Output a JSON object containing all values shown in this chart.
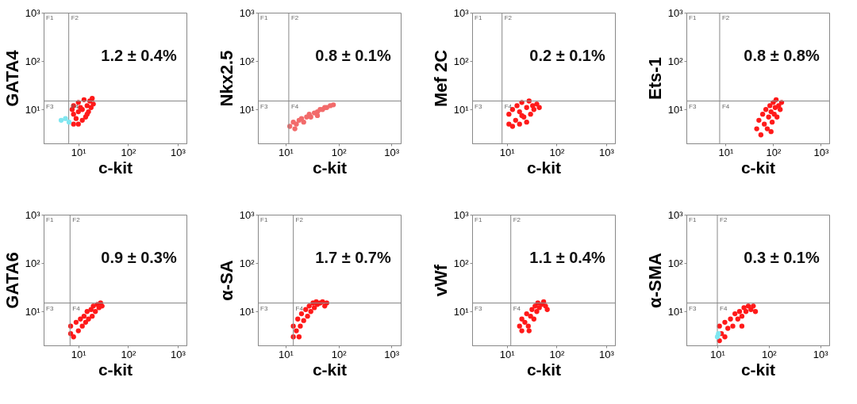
{
  "chart_data": [
    {
      "type": "scatter",
      "ylabel": "GATA4",
      "xlabel": "c-kit",
      "log": "xy",
      "marker": "circle",
      "xlim": [
        2,
        1500
      ],
      "ylim": [
        2,
        1000
      ],
      "xticks": [
        {
          "value": 10,
          "label": "10¹"
        },
        {
          "value": 100,
          "label": "10²"
        },
        {
          "value": 1000,
          "label": "10³"
        }
      ],
      "yticks": [
        {
          "value": 10,
          "label": "10¹"
        },
        {
          "value": 100,
          "label": "10²"
        },
        {
          "value": 1000,
          "label": "10³"
        }
      ],
      "series": [
        {
          "color": "#ff1a1a",
          "x": [
            8,
            8,
            8,
            10,
            10,
            10,
            12,
            12,
            13,
            14,
            15,
            16,
            17,
            18,
            20,
            9,
            11,
            15,
            19,
            7.5
          ],
          "values": [
            5,
            8,
            12,
            5,
            9,
            14,
            6,
            10,
            16,
            7,
            12,
            9,
            15,
            11,
            13,
            6.5,
            11,
            8,
            17,
            10
          ]
        },
        {
          "color": "#7fe6f0",
          "x": [
            4.5,
            5.5,
            6.5
          ],
          "values": [
            6,
            6.5,
            5.5
          ]
        }
      ],
      "ref_lines": [
        {
          "axis": "x",
          "value": 6.4,
          "color": "#888888"
        },
        {
          "axis": "y",
          "value": 15,
          "color": "#888888"
        }
      ],
      "annotations": [
        "1.2 ± 0.4%",
        "F1",
        "F2",
        "F3",
        "F4"
      ]
    },
    {
      "type": "scatter",
      "ylabel": "Nkx2.5",
      "xlabel": "c-kit",
      "log": "xy",
      "marker": "circle",
      "xlim": [
        3,
        1500
      ],
      "ylim": [
        2,
        1000
      ],
      "xticks": [
        {
          "value": 10,
          "label": "10¹"
        },
        {
          "value": 100,
          "label": "10²"
        },
        {
          "value": 1000,
          "label": "10³"
        }
      ],
      "yticks": [
        {
          "value": 10,
          "label": "10¹"
        },
        {
          "value": 100,
          "label": "10²"
        },
        {
          "value": 1000,
          "label": "10³"
        }
      ],
      "series": [
        {
          "color": "#f26b6b",
          "x": [
            12,
            14,
            16,
            18,
            20,
            22,
            25,
            28,
            30,
            35,
            40,
            40,
            45,
            50,
            55,
            60,
            70,
            80,
            15
          ],
          "values": [
            4.5,
            5.5,
            5,
            6,
            6.5,
            5.5,
            7,
            8,
            7,
            8.5,
            9,
            7.5,
            10,
            10,
            11,
            11,
            12,
            12.5,
            4
          ]
        }
      ],
      "ref_lines": [
        {
          "axis": "x",
          "value": 11.5,
          "color": "#888888"
        },
        {
          "axis": "y",
          "value": 15,
          "color": "#888888"
        }
      ],
      "annotations": [
        "0.8 ± 0.1%",
        "F1",
        "F2",
        "F3",
        "F4"
      ]
    },
    {
      "type": "scatter",
      "ylabel": "Mef 2C",
      "xlabel": "c-kit",
      "log": "xy",
      "marker": "circle",
      "xlim": [
        2,
        1500
      ],
      "ylim": [
        2,
        1000
      ],
      "xticks": [
        {
          "value": 10,
          "label": "10¹"
        },
        {
          "value": 100,
          "label": "10²"
        },
        {
          "value": 1000,
          "label": "10³"
        }
      ],
      "yticks": [
        {
          "value": 10,
          "label": "10¹"
        },
        {
          "value": 100,
          "label": "10²"
        },
        {
          "value": 1000,
          "label": "10³"
        }
      ],
      "series": [
        {
          "color": "#ff1a1a",
          "x": [
            11,
            11,
            13,
            13,
            15,
            16,
            18,
            18,
            20,
            22,
            25,
            25,
            28,
            30,
            33,
            35,
            40,
            45,
            20
          ],
          "values": [
            5,
            8,
            4.5,
            10,
            6,
            12,
            5,
            9,
            14,
            7,
            11,
            5.5,
            15,
            8,
            12,
            10,
            13,
            11,
            7.5
          ]
        }
      ],
      "ref_lines": [
        {
          "axis": "x",
          "value": 8,
          "color": "#888888"
        },
        {
          "axis": "y",
          "value": 15,
          "color": "#888888"
        }
      ],
      "annotations": [
        "0.2 ± 0.1%",
        "F1",
        "F2",
        "F3",
        "F4"
      ]
    },
    {
      "type": "scatter",
      "ylabel": "Ets-1",
      "xlabel": "c-kit",
      "log": "xy",
      "marker": "circle",
      "xlim": [
        1.5,
        1500
      ],
      "ylim": [
        2,
        1000
      ],
      "xticks": [
        {
          "value": 10,
          "label": "10¹"
        },
        {
          "value": 100,
          "label": "10²"
        },
        {
          "value": 1000,
          "label": "10³"
        }
      ],
      "yticks": [
        {
          "value": 10,
          "label": "10¹"
        },
        {
          "value": 100,
          "label": "10²"
        },
        {
          "value": 1000,
          "label": "10³"
        }
      ],
      "series": [
        {
          "color": "#ff1a1a",
          "x": [
            45,
            50,
            55,
            60,
            65,
            70,
            75,
            80,
            85,
            90,
            95,
            100,
            105,
            110,
            115,
            120,
            130,
            140,
            150,
            90
          ],
          "values": [
            4,
            6,
            3,
            8,
            5,
            10,
            4,
            7,
            12,
            9,
            5.5,
            14,
            8,
            11,
            16,
            7,
            12,
            10,
            14,
            3.5
          ]
        }
      ],
      "ref_lines": [
        {
          "axis": "x",
          "value": 7.5,
          "color": "#888888"
        },
        {
          "axis": "y",
          "value": 15,
          "color": "#888888"
        }
      ],
      "annotations": [
        "0.8 ± 0.8%",
        "F1",
        "F2",
        "F3",
        "F4"
      ]
    },
    {
      "type": "scatter",
      "ylabel": "GATA6",
      "xlabel": "c-kit",
      "log": "xy",
      "marker": "circle",
      "xlim": [
        2,
        1500
      ],
      "ylim": [
        2,
        1000
      ],
      "xticks": [
        {
          "value": 10,
          "label": "10¹"
        },
        {
          "value": 100,
          "label": "10²"
        },
        {
          "value": 1000,
          "label": "10³"
        }
      ],
      "yticks": [
        {
          "value": 10,
          "label": "10¹"
        },
        {
          "value": 100,
          "label": "10²"
        },
        {
          "value": 1000,
          "label": "10³"
        }
      ],
      "series": [
        {
          "color": "#ff1a1a",
          "x": [
            7,
            7,
            8,
            9,
            10,
            11,
            12,
            13,
            14,
            15,
            16,
            18,
            19,
            20,
            22,
            24,
            26,
            28,
            30
          ],
          "values": [
            3.5,
            5,
            3,
            6,
            4,
            7,
            5,
            8,
            6,
            10,
            7,
            11,
            8,
            13,
            10,
            14,
            12,
            15,
            13
          ]
        }
      ],
      "ref_lines": [
        {
          "axis": "x",
          "value": 6.8,
          "color": "#888888"
        },
        {
          "axis": "y",
          "value": 15,
          "color": "#888888"
        }
      ],
      "annotations": [
        "0.9 ± 0.3%",
        "F1",
        "F2",
        "F3",
        "F4"
      ]
    },
    {
      "type": "scatter",
      "ylabel": "α-SA",
      "xlabel": "c-kit",
      "log": "xy",
      "marker": "circle",
      "xlim": [
        3,
        1500
      ],
      "ylim": [
        2,
        1000
      ],
      "xticks": [
        {
          "value": 10,
          "label": "10¹"
        },
        {
          "value": 100,
          "label": "10²"
        },
        {
          "value": 1000,
          "label": "10³"
        }
      ],
      "yticks": [
        {
          "value": 10,
          "label": "10¹"
        },
        {
          "value": 100,
          "label": "10²"
        },
        {
          "value": 1000,
          "label": "10³"
        }
      ],
      "series": [
        {
          "color": "#ff1a1a",
          "x": [
            14,
            14,
            16,
            17,
            19,
            20,
            22,
            24,
            26,
            28,
            30,
            33,
            35,
            38,
            40,
            45,
            50,
            55,
            60,
            18
          ],
          "values": [
            3,
            5,
            4,
            7,
            5,
            9,
            6.5,
            11,
            8,
            13,
            10,
            15,
            12,
            16,
            14,
            15,
            16,
            13,
            15,
            3
          ]
        }
      ],
      "ref_lines": [
        {
          "axis": "x",
          "value": 14,
          "color": "#888888"
        },
        {
          "axis": "y",
          "value": 15,
          "color": "#888888"
        }
      ],
      "annotations": [
        "1.7 ± 0.7%",
        "F1",
        "F2",
        "F3",
        "F4"
      ]
    },
    {
      "type": "scatter",
      "ylabel": "vWf",
      "xlabel": "c-kit",
      "log": "xy",
      "marker": "circle",
      "xlim": [
        2,
        1500
      ],
      "ylim": [
        2,
        1000
      ],
      "xticks": [
        {
          "value": 10,
          "label": "10¹"
        },
        {
          "value": 100,
          "label": "10²"
        },
        {
          "value": 1000,
          "label": "10³"
        }
      ],
      "yticks": [
        {
          "value": 10,
          "label": "10¹"
        },
        {
          "value": 100,
          "label": "10²"
        },
        {
          "value": 1000,
          "label": "10³"
        }
      ],
      "series": [
        {
          "color": "#ff1a1a",
          "x": [
            18,
            20,
            20,
            23,
            25,
            27,
            30,
            32,
            35,
            37,
            40,
            42,
            45,
            50,
            55,
            60,
            65,
            28
          ],
          "values": [
            5,
            4,
            7,
            6,
            9,
            5,
            8,
            11,
            7,
            13,
            10,
            15,
            12,
            14,
            16,
            13,
            11,
            4
          ]
        }
      ],
      "ref_lines": [
        {
          "axis": "x",
          "value": 12,
          "color": "#888888"
        },
        {
          "axis": "y",
          "value": 15,
          "color": "#888888"
        }
      ],
      "annotations": [
        "1.1 ± 0.4%",
        "F1",
        "F2",
        "F3",
        "F4"
      ]
    },
    {
      "type": "scatter",
      "ylabel": "α-SMA",
      "xlabel": "c-kit",
      "log": "xy",
      "marker": "circle",
      "xlim": [
        2.5,
        1500
      ],
      "ylim": [
        2,
        1000
      ],
      "xticks": [
        {
          "value": 10,
          "label": "10¹"
        },
        {
          "value": 100,
          "label": "10²"
        },
        {
          "value": 1000,
          "label": "10³"
        }
      ],
      "yticks": [
        {
          "value": 10,
          "label": "10¹"
        },
        {
          "value": 100,
          "label": "10²"
        },
        {
          "value": 1000,
          "label": "10³"
        }
      ],
      "series": [
        {
          "color": "#ff1a1a",
          "x": [
            11,
            11,
            12,
            14,
            14,
            16,
            18,
            20,
            22,
            25,
            27,
            30,
            33,
            36,
            40,
            45,
            50,
            55,
            30
          ],
          "values": [
            2.5,
            5,
            3.5,
            3,
            6,
            4.5,
            7,
            5,
            9,
            7,
            10,
            8,
            12,
            10,
            13,
            11,
            13,
            10,
            5
          ]
        },
        {
          "color": "#7fe6f0",
          "x": [
            10,
            10.5
          ],
          "values": [
            3,
            3.5
          ]
        }
      ],
      "ref_lines": [
        {
          "axis": "x",
          "value": 10,
          "color": "#888888"
        },
        {
          "axis": "y",
          "value": 15,
          "color": "#888888"
        }
      ],
      "annotations": [
        "0.3 ± 0.1%",
        "F1",
        "F2",
        "F3",
        "F4"
      ]
    }
  ]
}
